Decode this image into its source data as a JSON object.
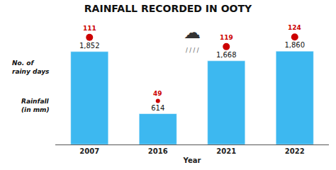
{
  "chart_data": {
    "type": "bar",
    "title": "RAINFALL RECORDED IN OOTY",
    "x_label": "Year",
    "categories": [
      "2007",
      "2016",
      "2021",
      "2022"
    ],
    "values": [
      1852,
      614,
      1668,
      1860
    ],
    "value_labels": [
      "1,852",
      "614",
      "1,668",
      "1,860"
    ],
    "data_labels": true,
    "color": "#3db8f0",
    "rainy_days": {
      "values": [
        111,
        49,
        119,
        124
      ],
      "color": "#cc0000"
    },
    "ylim": [
      0,
      2400
    ],
    "grid": false,
    "tick_labels": "x",
    "annotations": [
      {
        "text": "No. of\nrainy days"
      },
      {
        "text": "Rainfall\n(in mm)"
      },
      {
        "text": "☁"
      },
      {
        "text": "/ / / /"
      }
    ]
  }
}
